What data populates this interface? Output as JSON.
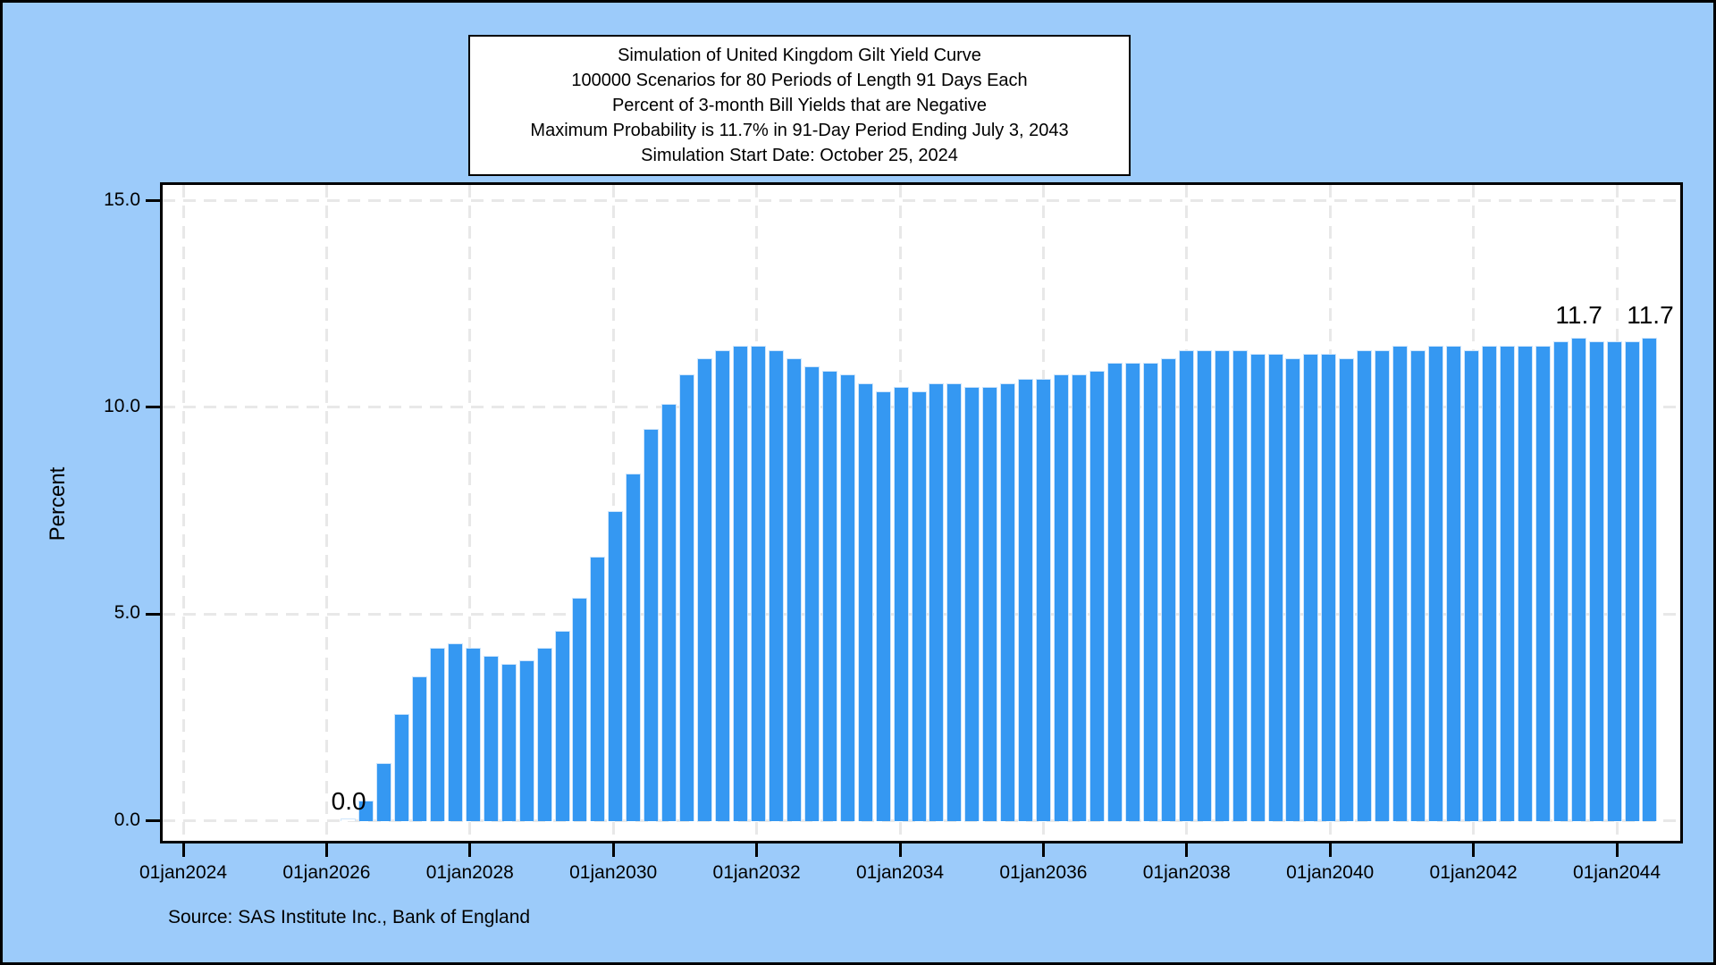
{
  "title_lines": [
    "Simulation of United Kingdom Gilt Yield Curve",
    "100000 Scenarios for 80 Periods of Length 91 Days Each",
    "Percent of 3-month Bill Yields that are Negative",
    "Maximum Probability is 11.7% in 91-Day Period Ending July 3, 2043",
    "Simulation Start Date: October 25, 2024"
  ],
  "source_note": "Source: SAS Institute Inc., Bank of England",
  "y_axis_title": "Percent",
  "chart_data": {
    "type": "bar",
    "title": "Simulation of United Kingdom Gilt Yield Curve",
    "subtitle": "Percent of 3-month Bill Yields that are Negative",
    "n_periods": 80,
    "period_length_days": 91,
    "scenarios": 100000,
    "simulation_start_date": "October 25, 2024",
    "max_probability_note": "Maximum Probability is 11.7% in 91-Day Period Ending July 3, 2043",
    "xlabel": "",
    "ylabel": "Percent",
    "ylim": [
      0,
      15
    ],
    "grid": true,
    "y_tick_labels": [
      "0.0",
      "5.0",
      "10.0",
      "15.0"
    ],
    "y_tick_values": [
      0,
      5,
      10,
      15
    ],
    "x_tick_labels": [
      "01jan2024",
      "01jan2026",
      "01jan2028",
      "01jan2030",
      "01jan2032",
      "01jan2034",
      "01jan2036",
      "01jan2038",
      "01jan2040",
      "01jan2042",
      "01jan2044"
    ],
    "values": [
      0.0,
      0.0,
      0.0,
      0.0,
      0.0,
      0.0,
      0.0,
      0.5,
      1.4,
      2.6,
      3.5,
      4.2,
      4.3,
      4.2,
      4.0,
      3.8,
      3.9,
      4.2,
      4.6,
      5.4,
      6.4,
      7.5,
      8.4,
      9.5,
      10.1,
      10.8,
      11.2,
      11.4,
      11.5,
      11.5,
      11.4,
      11.2,
      11.0,
      10.9,
      10.8,
      10.6,
      10.4,
      10.5,
      10.4,
      10.6,
      10.6,
      10.5,
      10.5,
      10.6,
      10.7,
      10.7,
      10.8,
      10.8,
      10.9,
      11.1,
      11.1,
      11.1,
      11.2,
      11.4,
      11.4,
      11.4,
      11.4,
      11.3,
      11.3,
      11.2,
      11.3,
      11.3,
      11.2,
      11.4,
      11.4,
      11.5,
      11.4,
      11.5,
      11.5,
      11.4,
      11.5,
      11.5,
      11.5,
      11.5,
      11.6,
      11.7,
      11.6,
      11.6,
      11.6,
      11.7
    ],
    "annotations": {
      "min_label": {
        "text": "0.0",
        "bar_index": 6
      },
      "max_labels": [
        {
          "text": "11.7",
          "bar_index": 75
        },
        {
          "text": "11.7",
          "bar_index": 79
        }
      ]
    },
    "colors": {
      "background": "#9CCBFA",
      "plot_background": "#FFFFFF",
      "bar_fill": "#3598F2",
      "bar_outline": "#CEE5FB",
      "gridline": "#E8E8E8",
      "frame": "#000000",
      "text": "#000000"
    },
    "legend": null
  }
}
